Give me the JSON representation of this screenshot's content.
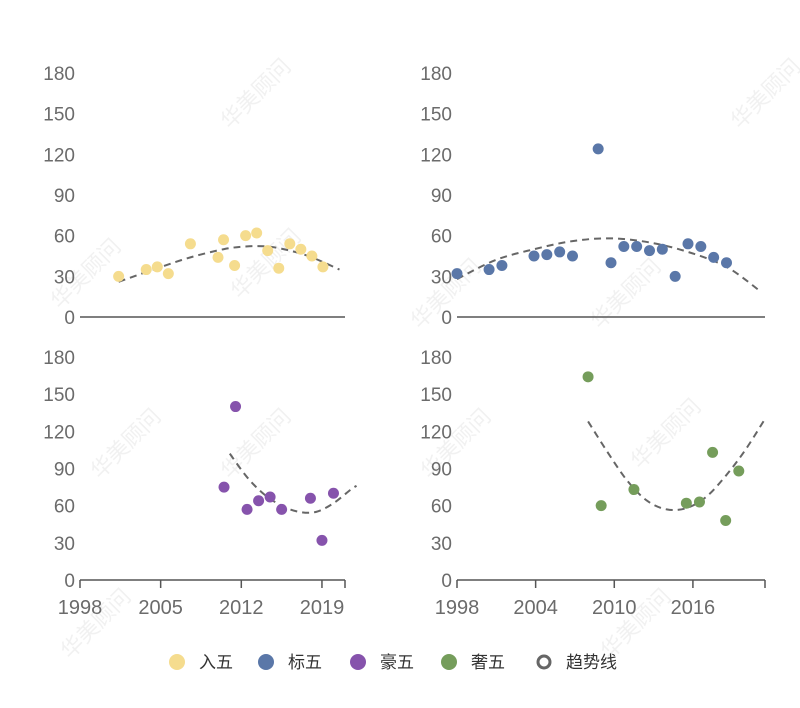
{
  "chart_data": [
    {
      "type": "scatter",
      "series_name": "入五",
      "color": "#f5dc8e",
      "ylim": [
        0,
        180
      ],
      "yticks": [
        0,
        30,
        60,
        90,
        120,
        150,
        180
      ],
      "xticks": [],
      "xlim": [
        1998,
        2022
      ],
      "points": [
        [
          2001.5,
          30
        ],
        [
          2004,
          35
        ],
        [
          2005,
          37
        ],
        [
          2006,
          32
        ],
        [
          2008,
          54
        ],
        [
          2010.5,
          44
        ],
        [
          2011,
          57
        ],
        [
          2012,
          38
        ],
        [
          2013,
          60
        ],
        [
          2014,
          62
        ],
        [
          2015,
          49
        ],
        [
          2016,
          36
        ],
        [
          2017,
          54
        ],
        [
          2018,
          50
        ],
        [
          2019,
          45
        ],
        [
          2020,
          37
        ]
      ],
      "trend": {
        "x_start": 2001.5,
        "x_end": 2021.5,
        "points": [
          [
            2001.5,
            26
          ],
          [
            2005,
            36
          ],
          [
            2008,
            44
          ],
          [
            2011,
            50
          ],
          [
            2013,
            52
          ],
          [
            2015,
            52
          ],
          [
            2017,
            49
          ],
          [
            2019,
            44
          ],
          [
            2021.5,
            35
          ]
        ]
      }
    },
    {
      "type": "scatter",
      "series_name": "标五",
      "color": "#5a77a8",
      "ylim": [
        0,
        180
      ],
      "yticks": [
        0,
        30,
        60,
        90,
        120,
        150,
        180
      ],
      "xticks": [],
      "xlim": [
        1998,
        2022
      ],
      "points": [
        [
          1998,
          32
        ],
        [
          2000.5,
          35
        ],
        [
          2001.5,
          38
        ],
        [
          2004,
          45
        ],
        [
          2005,
          46
        ],
        [
          2006,
          48
        ],
        [
          2007,
          45
        ],
        [
          2009,
          124
        ],
        [
          2010,
          40
        ],
        [
          2011,
          52
        ],
        [
          2012,
          52
        ],
        [
          2013,
          49
        ],
        [
          2014,
          50
        ],
        [
          2015,
          30
        ],
        [
          2016,
          54
        ],
        [
          2017,
          52
        ],
        [
          2018,
          44
        ],
        [
          2019,
          40
        ]
      ],
      "trend": {
        "x_start": 1998,
        "x_end": 2021.5,
        "points": [
          [
            1998,
            28
          ],
          [
            2001,
            42
          ],
          [
            2004,
            50
          ],
          [
            2007,
            56
          ],
          [
            2010,
            58
          ],
          [
            2013,
            55
          ],
          [
            2016,
            48
          ],
          [
            2019,
            37
          ],
          [
            2021.5,
            20
          ]
        ]
      }
    },
    {
      "type": "scatter",
      "series_name": "豪五",
      "color": "#8653ac",
      "ylim": [
        0,
        180
      ],
      "yticks": [
        0,
        30,
        60,
        90,
        120,
        150,
        180
      ],
      "xticks": [
        1998,
        2005,
        2012,
        2019
      ],
      "xlim": [
        1998,
        2021
      ],
      "points": [
        [
          2010.5,
          75
        ],
        [
          2011.5,
          140
        ],
        [
          2012.5,
          57
        ],
        [
          2013.5,
          64
        ],
        [
          2014.5,
          67
        ],
        [
          2015.5,
          57
        ],
        [
          2018,
          66
        ],
        [
          2019,
          32
        ],
        [
          2020,
          70
        ]
      ],
      "trend": {
        "x_start": 2011,
        "x_end": 2022,
        "points": [
          [
            2011,
            102
          ],
          [
            2012.5,
            83
          ],
          [
            2014,
            69
          ],
          [
            2015.5,
            60
          ],
          [
            2017,
            55
          ],
          [
            2018.5,
            55
          ],
          [
            2020,
            62
          ],
          [
            2021.5,
            73
          ],
          [
            2022,
            76
          ]
        ]
      }
    },
    {
      "type": "scatter",
      "series_name": "奢五",
      "color": "#759d5b",
      "ylim": [
        0,
        180
      ],
      "yticks": [
        0,
        30,
        60,
        90,
        120,
        150,
        180
      ],
      "xticks": [
        1998,
        2004,
        2010,
        2016
      ],
      "xlim": [
        1998,
        2021.5
      ],
      "points": [
        [
          2008,
          164
        ],
        [
          2009,
          60
        ],
        [
          2011.5,
          73
        ],
        [
          2015.5,
          62
        ],
        [
          2016.5,
          63
        ],
        [
          2017.5,
          103
        ],
        [
          2018.5,
          48
        ],
        [
          2019.5,
          88
        ]
      ],
      "trend": {
        "x_start": 2008,
        "x_end": 2021.5,
        "points": [
          [
            2008,
            128
          ],
          [
            2009.5,
            103
          ],
          [
            2011,
            80
          ],
          [
            2012.5,
            64
          ],
          [
            2014,
            57
          ],
          [
            2015.5,
            58
          ],
          [
            2017,
            67
          ],
          [
            2018.5,
            84
          ],
          [
            2020,
            105
          ],
          [
            2021.5,
            130
          ]
        ]
      }
    }
  ],
  "legend": [
    {
      "label": "入五",
      "color": "#f5dc8e",
      "kind": "dot"
    },
    {
      "label": "标五",
      "color": "#5a77a8",
      "kind": "dot"
    },
    {
      "label": "豪五",
      "color": "#8653ac",
      "kind": "dot"
    },
    {
      "label": "奢五",
      "color": "#759d5b",
      "kind": "dot"
    },
    {
      "label": "趋势线",
      "color": "#666666",
      "kind": "ring"
    }
  ],
  "watermark": "华美顾问"
}
